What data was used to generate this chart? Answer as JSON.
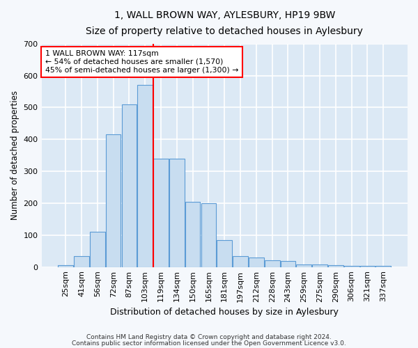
{
  "title": "1, WALL BROWN WAY, AYLESBURY, HP19 9BW",
  "subtitle": "Size of property relative to detached houses in Aylesbury",
  "xlabel": "Distribution of detached houses by size in Aylesbury",
  "ylabel": "Number of detached properties",
  "bar_color": "#c8ddf0",
  "bar_edge_color": "#5b9bd5",
  "background_color": "#dce9f5",
  "fig_background": "#f5f8fc",
  "grid_color": "#ffffff",
  "categories": [
    "25sqm",
    "41sqm",
    "56sqm",
    "72sqm",
    "87sqm",
    "103sqm",
    "119sqm",
    "134sqm",
    "150sqm",
    "165sqm",
    "181sqm",
    "197sqm",
    "212sqm",
    "228sqm",
    "243sqm",
    "259sqm",
    "275sqm",
    "290sqm",
    "306sqm",
    "321sqm",
    "337sqm"
  ],
  "values": [
    5,
    35,
    110,
    415,
    510,
    570,
    340,
    340,
    205,
    200,
    85,
    35,
    30,
    22,
    20,
    8,
    8,
    5,
    3,
    3,
    3
  ],
  "ylim": [
    0,
    700
  ],
  "yticks": [
    0,
    100,
    200,
    300,
    400,
    500,
    600,
    700
  ],
  "red_line_index": 6,
  "annotation_title": "1 WALL BROWN WAY: 117sqm",
  "annotation_line1": "← 54% of detached houses are smaller (1,570)",
  "annotation_line2": "45% of semi-detached houses are larger (1,300) →",
  "footnote1": "Contains HM Land Registry data © Crown copyright and database right 2024.",
  "footnote2": "Contains public sector information licensed under the Open Government Licence v3.0."
}
